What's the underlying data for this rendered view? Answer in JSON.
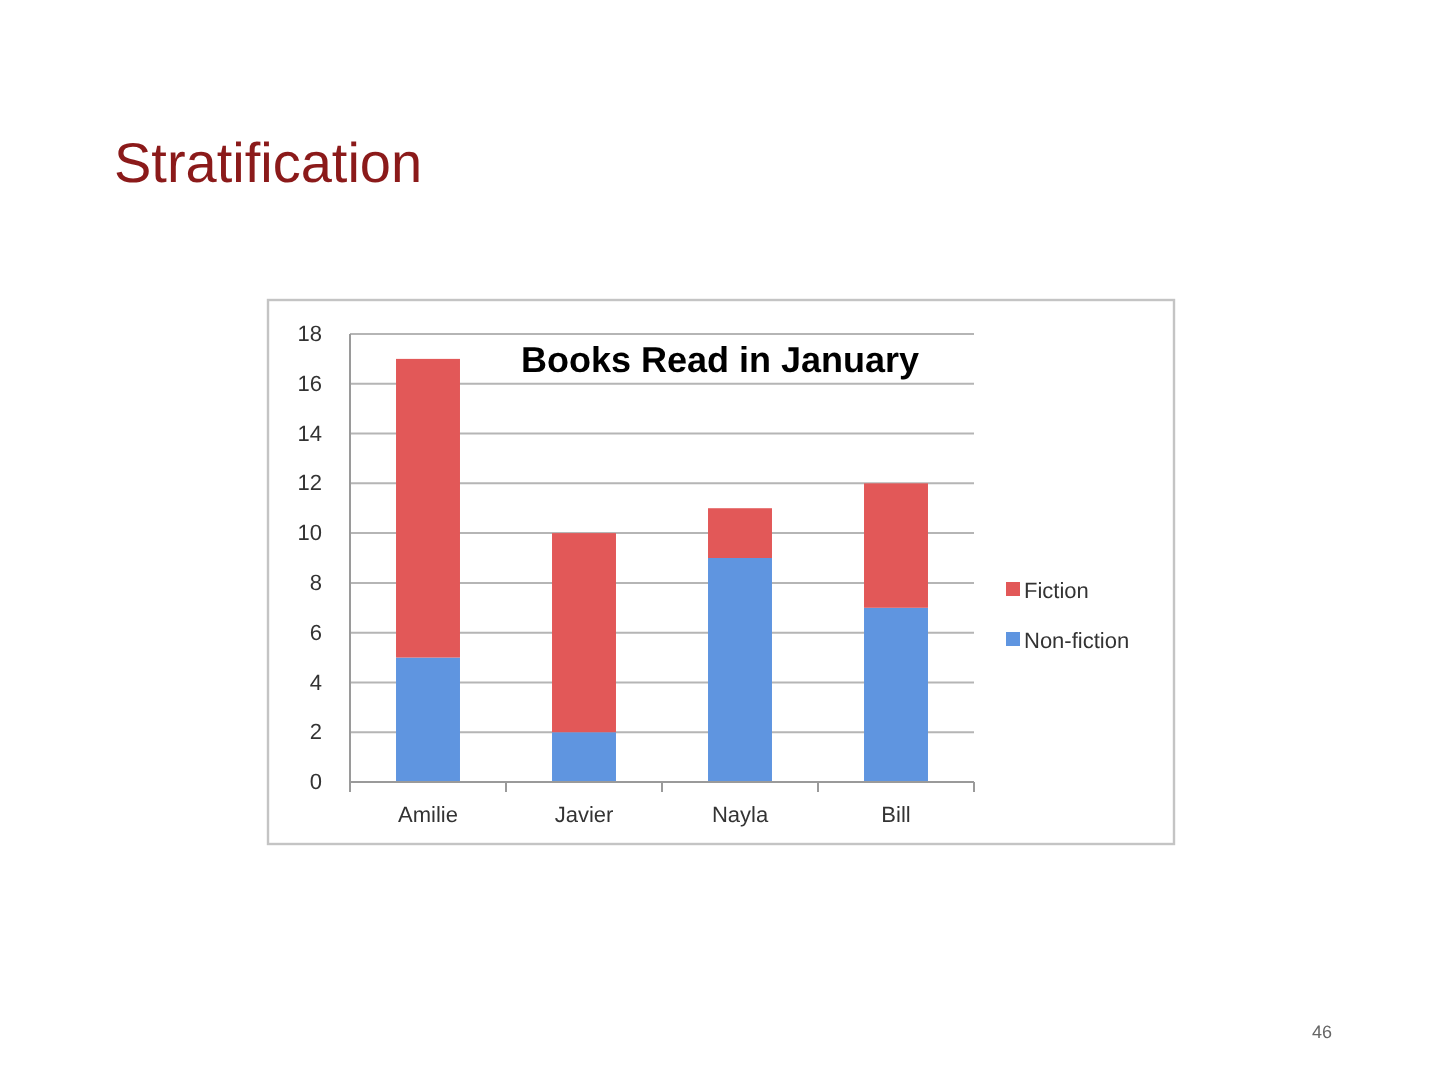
{
  "chart_data": {
    "type": "bar",
    "title": "Stratification",
    "subtitle": "Books Read in January",
    "categories": [
      "Amilie",
      "Javier",
      "Nayla",
      "Bill"
    ],
    "series": [
      {
        "name": "Non-fiction",
        "color": "#5f95e0",
        "values": [
          5,
          2,
          9,
          7
        ]
      },
      {
        "name": "Fiction",
        "color": "#e25858",
        "values": [
          12,
          8,
          2,
          5
        ]
      }
    ],
    "stacked": true,
    "ylim": [
      0,
      18
    ],
    "yticks": [
      0,
      2,
      4,
      6,
      8,
      10,
      12,
      14,
      16,
      18
    ],
    "grid": "y",
    "legend": "right",
    "annotations": [
      "46"
    ]
  }
}
